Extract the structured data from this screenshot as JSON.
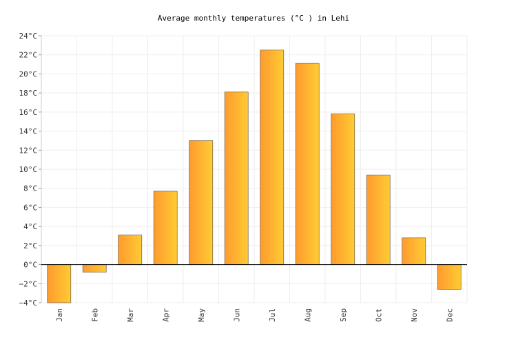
{
  "chart_data": {
    "type": "bar",
    "title": "Average monthly temperatures (°C ) in Lehi",
    "xlabel": "",
    "ylabel": "",
    "categories": [
      "Jan",
      "Feb",
      "Mar",
      "Apr",
      "May",
      "Jun",
      "Jul",
      "Aug",
      "Sep",
      "Oct",
      "Nov",
      "Dec"
    ],
    "values": [
      -4.0,
      -0.8,
      3.1,
      7.7,
      13.0,
      18.1,
      22.5,
      21.1,
      15.8,
      9.4,
      2.8,
      -2.6
    ],
    "ylim": [
      -4,
      24
    ],
    "yticks": [
      -4,
      -2,
      0,
      2,
      4,
      6,
      8,
      10,
      12,
      14,
      16,
      18,
      20,
      22,
      24
    ],
    "ytick_labels": [
      "−4°C",
      "−2°C",
      "0°C",
      "2°C",
      "4°C",
      "6°C",
      "8°C",
      "10°C",
      "12°C",
      "14°C",
      "16°C",
      "18°C",
      "20°C",
      "22°C",
      "24°C"
    ],
    "grid": true,
    "legend": "none",
    "colors": {
      "bar_start": "#ff9a2e",
      "bar_end": "#ffcc33",
      "zero_line": "#000000"
    }
  }
}
